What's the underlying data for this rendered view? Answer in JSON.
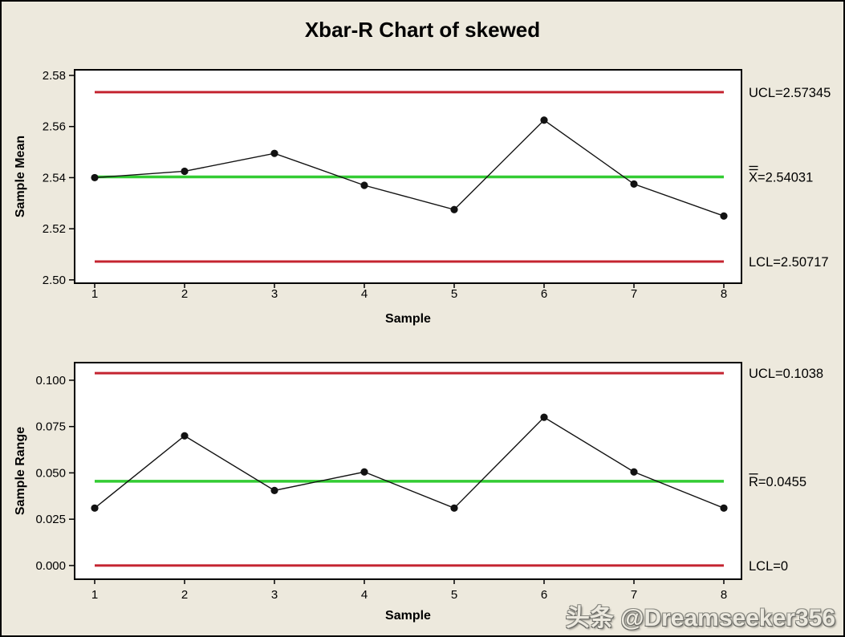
{
  "window": {
    "title": "Xbar-R Chart of skewed"
  },
  "watermark": {
    "text": "头条 @Dreamseeker356"
  },
  "colors": {
    "canvas_bg": "#EDE9DD",
    "plot_bg": "#FFFFFF",
    "frame_border": "#000000",
    "limit_line_red": "#C42430",
    "center_line_green": "#33CC33",
    "series_black": "#121212",
    "text": "#000000"
  },
  "chart_data": [
    {
      "type": "line",
      "id": "xbar",
      "title": "Xbar chart",
      "xlabel": "Sample",
      "ylabel": "Sample Mean",
      "categories": [
        "1",
        "2",
        "3",
        "4",
        "5",
        "6",
        "7",
        "8"
      ],
      "values": [
        2.54,
        2.5425,
        2.5495,
        2.537,
        2.5275,
        2.5625,
        2.5375,
        2.525
      ],
      "yticks": [
        2.58,
        2.56,
        2.54,
        2.52,
        2.5
      ],
      "ytick_labels": [
        "2.58",
        "2.56",
        "2.54",
        "2.52",
        "2.50"
      ],
      "ylim": [
        2.4987,
        2.5822
      ],
      "grid": false,
      "legend": "none",
      "control_lines": [
        {
          "kind": "ucl",
          "value": 2.57345,
          "label": "UCL=2.57345",
          "color_key": "limit_line_red"
        },
        {
          "kind": "center",
          "value": 2.54031,
          "label": {
            "base": "X",
            "overbars": 2,
            "suffix": "=2.54031"
          },
          "color_key": "center_line_green"
        },
        {
          "kind": "lcl",
          "value": 2.50717,
          "label": "LCL=2.50717",
          "color_key": "limit_line_red"
        }
      ]
    },
    {
      "type": "line",
      "id": "r",
      "title": "R chart",
      "xlabel": "Sample",
      "ylabel": "Sample Range",
      "categories": [
        "1",
        "2",
        "3",
        "4",
        "5",
        "6",
        "7",
        "8"
      ],
      "values": [
        0.031,
        0.07,
        0.0405,
        0.0505,
        0.031,
        0.08,
        0.0505,
        0.031
      ],
      "yticks": [
        0.1,
        0.075,
        0.05,
        0.025,
        0.0
      ],
      "ytick_labels": [
        "0.100",
        "0.075",
        "0.050",
        "0.025",
        "0.000"
      ],
      "ylim": [
        -0.0074,
        0.1095
      ],
      "grid": false,
      "legend": "none",
      "control_lines": [
        {
          "kind": "ucl",
          "value": 0.1038,
          "label": "UCL=0.1038",
          "color_key": "limit_line_red"
        },
        {
          "kind": "center",
          "value": 0.0455,
          "label": {
            "base": "R",
            "overbars": 1,
            "suffix": "=0.0455"
          },
          "color_key": "center_line_green"
        },
        {
          "kind": "lcl",
          "value": 0,
          "label": "LCL=0",
          "color_key": "limit_line_red"
        }
      ]
    }
  ]
}
